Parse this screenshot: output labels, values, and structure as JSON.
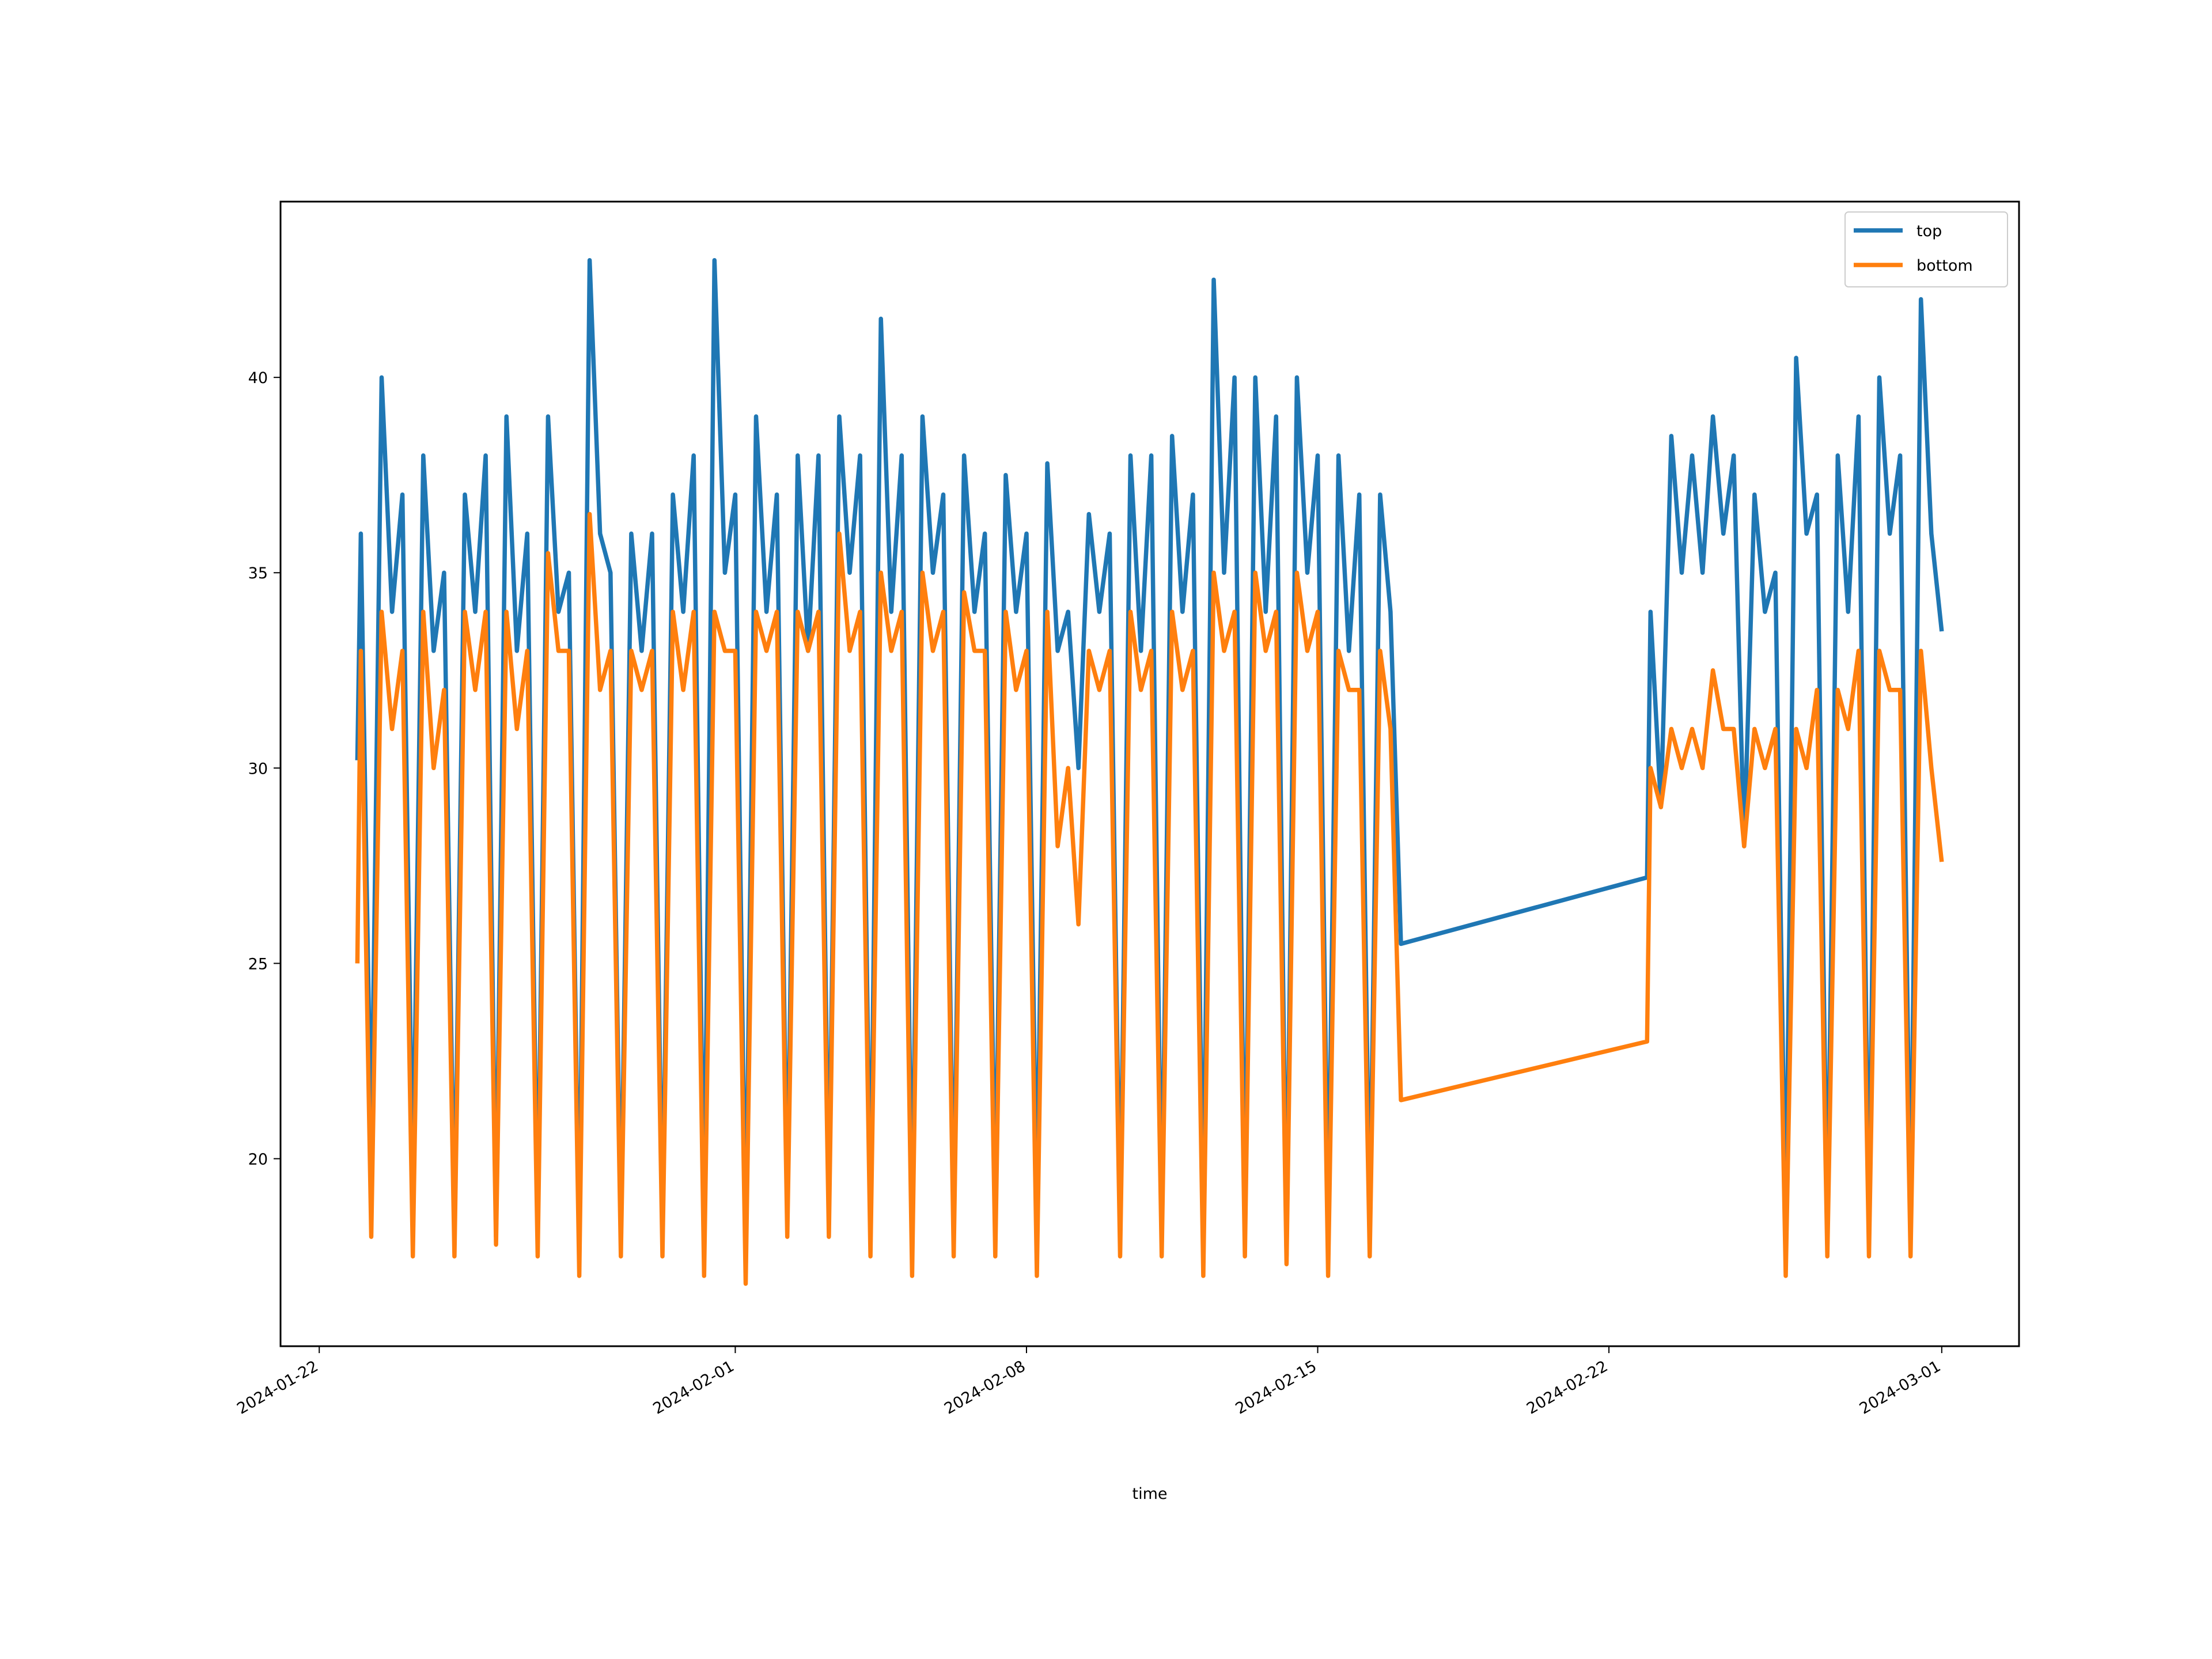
{
  "chart_data": {
    "type": "line",
    "xlabel": "time",
    "x": [
      "2024-01-22 22:00",
      "2024-01-23 00:00",
      "2024-01-23 06:00",
      "2024-01-23 12:00",
      "2024-01-23 18:00",
      "2024-01-24 00:00",
      "2024-01-24 06:00",
      "2024-01-24 12:00",
      "2024-01-24 18:00",
      "2024-01-25 00:00",
      "2024-01-25 06:00",
      "2024-01-25 12:00",
      "2024-01-25 18:00",
      "2024-01-26 00:00",
      "2024-01-26 06:00",
      "2024-01-26 12:00",
      "2024-01-26 18:00",
      "2024-01-27 00:00",
      "2024-01-27 06:00",
      "2024-01-27 12:00",
      "2024-01-27 18:00",
      "2024-01-28 00:00",
      "2024-01-28 06:00",
      "2024-01-28 12:00",
      "2024-01-28 18:00",
      "2024-01-29 00:00",
      "2024-01-29 06:00",
      "2024-01-29 12:00",
      "2024-01-29 18:00",
      "2024-01-30 00:00",
      "2024-01-30 06:00",
      "2024-01-30 12:00",
      "2024-01-30 18:00",
      "2024-01-31 00:00",
      "2024-01-31 06:00",
      "2024-01-31 12:00",
      "2024-01-31 18:00",
      "2024-02-01 00:00",
      "2024-02-01 06:00",
      "2024-02-01 12:00",
      "2024-02-01 18:00",
      "2024-02-02 00:00",
      "2024-02-02 06:00",
      "2024-02-02 12:00",
      "2024-02-02 18:00",
      "2024-02-03 00:00",
      "2024-02-03 06:00",
      "2024-02-03 12:00",
      "2024-02-03 18:00",
      "2024-02-04 00:00",
      "2024-02-04 06:00",
      "2024-02-04 12:00",
      "2024-02-04 18:00",
      "2024-02-05 00:00",
      "2024-02-05 06:00",
      "2024-02-05 12:00",
      "2024-02-05 18:00",
      "2024-02-06 00:00",
      "2024-02-06 06:00",
      "2024-02-06 12:00",
      "2024-02-06 18:00",
      "2024-02-07 00:00",
      "2024-02-07 06:00",
      "2024-02-07 12:00",
      "2024-02-07 18:00",
      "2024-02-08 00:00",
      "2024-02-08 06:00",
      "2024-02-08 12:00",
      "2024-02-08 18:00",
      "2024-02-09 00:00",
      "2024-02-09 06:00",
      "2024-02-09 12:00",
      "2024-02-09 18:00",
      "2024-02-10 00:00",
      "2024-02-10 06:00",
      "2024-02-10 12:00",
      "2024-02-10 18:00",
      "2024-02-11 00:00",
      "2024-02-11 06:00",
      "2024-02-11 12:00",
      "2024-02-11 18:00",
      "2024-02-12 00:00",
      "2024-02-12 06:00",
      "2024-02-12 12:00",
      "2024-02-12 18:00",
      "2024-02-13 00:00",
      "2024-02-13 06:00",
      "2024-02-13 12:00",
      "2024-02-13 18:00",
      "2024-02-14 00:00",
      "2024-02-14 06:00",
      "2024-02-14 12:00",
      "2024-02-14 18:00",
      "2024-02-15 00:00",
      "2024-02-15 06:00",
      "2024-02-15 12:00",
      "2024-02-15 18:00",
      "2024-02-16 00:00",
      "2024-02-16 06:00",
      "2024-02-16 12:00",
      "2024-02-16 18:00",
      "2024-02-17 00:00",
      "2024-02-22 22:00",
      "2024-02-23 00:00",
      "2024-02-23 06:00",
      "2024-02-23 12:00",
      "2024-02-23 18:00",
      "2024-02-24 00:00",
      "2024-02-24 06:00",
      "2024-02-24 12:00",
      "2024-02-24 18:00",
      "2024-02-25 00:00",
      "2024-02-25 06:00",
      "2024-02-25 12:00",
      "2024-02-25 18:00",
      "2024-02-26 00:00",
      "2024-02-26 06:00",
      "2024-02-26 12:00",
      "2024-02-26 18:00",
      "2024-02-27 00:00",
      "2024-02-27 06:00",
      "2024-02-27 12:00",
      "2024-02-27 18:00",
      "2024-02-28 00:00",
      "2024-02-28 06:00",
      "2024-02-28 12:00",
      "2024-02-28 18:00",
      "2024-02-29 00:00",
      "2024-02-29 06:00",
      "2024-02-29 12:00",
      "2024-02-29 18:00",
      "2024-03-01 00:00"
    ],
    "series": [
      {
        "name": "top",
        "color": "#1f77b4",
        "values": [
          30.2,
          36,
          20,
          40,
          34,
          37,
          19,
          38,
          33,
          35,
          18,
          37,
          34,
          38,
          18,
          39,
          33,
          36,
          18,
          39,
          34,
          35,
          17.5,
          43,
          36,
          35,
          18,
          36,
          33,
          36,
          18,
          37,
          34,
          38,
          18,
          43,
          35,
          37,
          17.5,
          39,
          34,
          37,
          18.5,
          38,
          33,
          38,
          18.5,
          39,
          35,
          38,
          18,
          41.5,
          34,
          38,
          18,
          39,
          35,
          37,
          18,
          38,
          34,
          36,
          18.5,
          37.5,
          34,
          36,
          18.5,
          37.8,
          33,
          34,
          30,
          36.5,
          34,
          36,
          18,
          38,
          33,
          38,
          18,
          38.5,
          34,
          37,
          18,
          42.5,
          35,
          40,
          18,
          40,
          34,
          39,
          17.5,
          40,
          35,
          38,
          18,
          38,
          33,
          37,
          18,
          37,
          34,
          25.5,
          27.2,
          34,
          29,
          38.5,
          35,
          38,
          35,
          39,
          36,
          38,
          28,
          37,
          34,
          35,
          18,
          40.5,
          36,
          37,
          18,
          38,
          34,
          39,
          18,
          40,
          36,
          38,
          18,
          42,
          36,
          33.5
        ]
      },
      {
        "name": "bottom",
        "color": "#ff7f0e",
        "values": [
          25,
          33,
          18,
          34,
          31,
          33,
          17.5,
          34,
          30,
          32,
          17.5,
          34,
          32,
          34,
          17.8,
          34,
          31,
          33,
          17.5,
          35.5,
          33,
          33,
          17,
          36.5,
          32,
          33,
          17.5,
          33,
          32,
          33,
          17.5,
          34,
          32,
          34,
          17,
          34,
          33,
          33,
          16.8,
          34,
          33,
          34,
          18,
          34,
          33,
          34,
          18,
          36,
          33,
          34,
          17.5,
          35,
          33,
          34,
          17,
          35,
          33,
          34,
          17.5,
          34.5,
          33,
          33,
          17.5,
          34,
          32,
          33,
          17,
          34,
          28,
          30,
          26,
          33,
          32,
          33,
          17.5,
          34,
          32,
          33,
          17.5,
          34,
          32,
          33,
          17,
          35,
          33,
          34,
          17.5,
          35,
          33,
          34,
          17.3,
          35,
          33,
          34,
          17,
          33,
          32,
          32,
          17.5,
          33,
          31,
          21.5,
          23,
          30,
          29,
          31,
          30,
          31,
          30,
          32.5,
          31,
          31,
          28,
          31,
          30,
          31,
          17,
          31,
          30,
          32,
          17.5,
          32,
          31,
          33,
          17.5,
          33,
          32,
          32,
          17.5,
          33,
          30,
          27.6
        ]
      }
    ],
    "xlim": [
      "2024-01-21 01:40",
      "2024-03-02 20:35"
    ],
    "xticks": [
      "2024-01-22",
      "2024-02-01",
      "2024-02-08",
      "2024-02-15",
      "2024-02-22",
      "2024-03-01"
    ],
    "ylim": [
      15.2,
      44.5
    ],
    "yticks": [
      20,
      25,
      30,
      35,
      40
    ],
    "legend": "upper right"
  }
}
